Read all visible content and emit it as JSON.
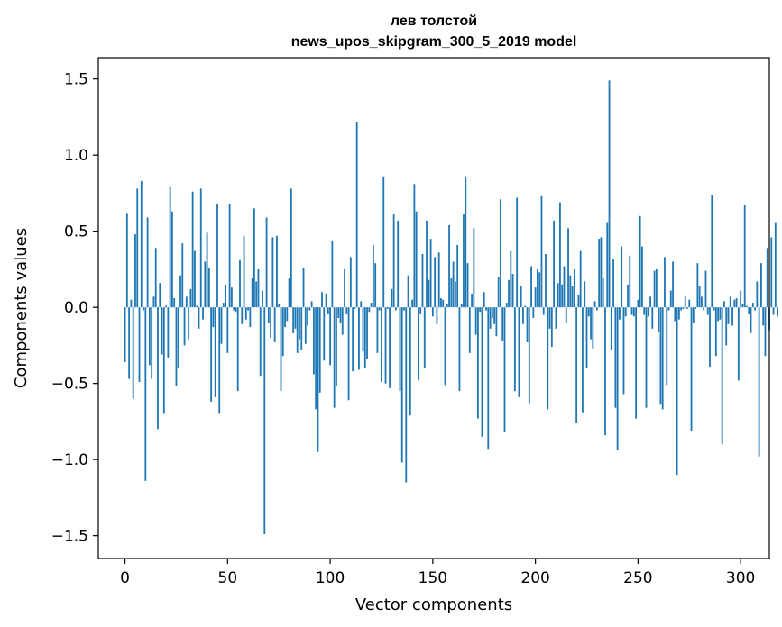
{
  "chart_data": {
    "type": "bar",
    "title_line1": "лев толстой",
    "title_line2": "news_upos_skipgram_300_5_2019 model",
    "xlabel": "Vector components",
    "ylabel": "Components values",
    "xlim": [
      -13,
      314
    ],
    "ylim": [
      -1.65,
      1.64
    ],
    "xticks": [
      0,
      50,
      100,
      150,
      200,
      250,
      300
    ],
    "xtick_labels": [
      "0",
      "50",
      "100",
      "150",
      "200",
      "250",
      "300"
    ],
    "yticks": [
      -1.5,
      -1.0,
      -0.5,
      0.0,
      0.5,
      1.0,
      1.5
    ],
    "ytick_labels": [
      "−1.5",
      "−1.0",
      "−0.5",
      "0.0",
      "0.5",
      "1.0",
      "1.5"
    ],
    "grid": false,
    "bar_color": "#1f77b4",
    "values": [
      -0.36,
      0.62,
      -0.47,
      0.05,
      -0.6,
      0.48,
      0.78,
      -0.49,
      0.83,
      -0.02,
      -1.14,
      0.59,
      -0.38,
      -0.47,
      0.07,
      0.39,
      -0.8,
      0.16,
      -0.31,
      -0.7,
      0.01,
      -0.33,
      0.79,
      0.63,
      0.06,
      -0.52,
      -0.4,
      0.21,
      0.42,
      -0.25,
      0.07,
      -0.21,
      0.12,
      0.76,
      0.37,
      0.01,
      -0.14,
      0.78,
      -0.08,
      0.3,
      0.49,
      0.26,
      -0.62,
      -0.13,
      -0.59,
      0.68,
      -0.7,
      -0.24,
      0.03,
      0.15,
      -0.3,
      0.68,
      0.13,
      -0.02,
      -0.03,
      -0.55,
      0.31,
      -0.11,
      0.47,
      -0.08,
      -0.02,
      -0.13,
      0.19,
      0.65,
      0.17,
      0.25,
      -0.45,
      0.11,
      -1.49,
      0.59,
      -0.1,
      -0.2,
      0.46,
      -0.23,
      0.47,
      0.02,
      -0.55,
      -0.32,
      -0.13,
      -0.09,
      0.19,
      0.78,
      -0.17,
      -0.14,
      -0.3,
      -0.21,
      -0.28,
      0.26,
      -0.24,
      -0.12,
      -0.02,
      0.04,
      -0.44,
      -0.67,
      -0.95,
      -0.56,
      0.1,
      -0.35,
      0.09,
      -0.04,
      -0.38,
      0.44,
      -0.66,
      -0.52,
      -0.07,
      -0.1,
      -0.18,
      0.25,
      -0.04,
      -0.61,
      0.33,
      -0.42,
      -0.01,
      1.22,
      -0.41,
      0.04,
      -0.29,
      -0.4,
      -0.34,
      -0.03,
      0.03,
      0.41,
      0.29,
      -0.3,
      -0.02,
      -0.49,
      0.86,
      -0.5,
      -0.01,
      -0.53,
      0.12,
      0.61,
      -0.02,
      0.57,
      -0.55,
      -1.02,
      -0.02,
      -1.15,
      0.21,
      -0.71,
      0.05,
      0.81,
      0.63,
      -0.48,
      -0.04,
      0.35,
      -0.4,
      0.57,
      0.18,
      0.45,
      -0.06,
      0.33,
      -0.11,
      0.36,
      0.06,
      0.05,
      -0.51,
      0.02,
      0.54,
      0.19,
      0.3,
      0.17,
      0.41,
      -0.55,
      0.02,
      0.61,
      0.86,
      0.29,
      -0.3,
      0.09,
      0.52,
      -0.18,
      -0.73,
      -0.03,
      -0.85,
      0.1,
      -0.02,
      -0.93,
      -0.14,
      -0.07,
      -0.11,
      -0.19,
      0.2,
      0.71,
      -0.22,
      -0.82,
      0.03,
      0.18,
      0.37,
      0.22,
      -0.55,
      0.72,
      -0.59,
      0.14,
      -0.11,
      0.01,
      -0.23,
      -0.63,
      0.27,
      -0.07,
      0.13,
      0.25,
      0.23,
      0.73,
      -0.05,
      0.35,
      -0.67,
      -0.14,
      -0.26,
      0.57,
      -0.14,
      0.16,
      0.69,
      0.15,
      0.27,
      -0.1,
      0.52,
      0.21,
      0.14,
      0.25,
      -0.76,
      0.08,
      0.37,
      -0.69,
      0.17,
      -0.4,
      -0.06,
      -0.21,
      -0.27,
      0.04,
      -0.02,
      0.45,
      0.46,
      0.19,
      -0.84,
      0.56,
      1.49,
      -0.28,
      0.32,
      -0.66,
      -0.94,
      -0.08,
      0.4,
      -0.57,
      -0.06,
      0.15,
      0.34,
      -0.05,
      -0.06,
      -0.73,
      0.05,
      0.6,
      0.4,
      -0.05,
      -0.66,
      -0.06,
      0.07,
      -0.14,
      0.24,
      0.25,
      -0.16,
      -0.64,
      -0.67,
      0.33,
      -0.51,
      -0.02,
      0.11,
      0.3,
      -0.09,
      -1.1,
      -0.08,
      -0.02,
      -0.01,
      0.07,
      -0.01,
      0.05,
      -0.81,
      -0.1,
      -0.01,
      0.29,
      0.14,
      0.07,
      -0.02,
      0.24,
      -0.05,
      -0.39,
      0.74,
      -0.02,
      -0.32,
      -0.09,
      -0.08,
      -0.9,
      0.04,
      -0.25,
      -0.11,
      0.07,
      -0.12,
      0.05,
      0.06,
      -0.48,
      0.11,
      0.02,
      0.67,
      0.01,
      -0.04,
      -0.17,
      0.03,
      -0.02,
      0.17,
      -0.98,
      0.29,
      -0.12,
      -0.32,
      0.39,
      -0.15,
      0.46,
      -0.05,
      0.56,
      -0.06
    ]
  }
}
